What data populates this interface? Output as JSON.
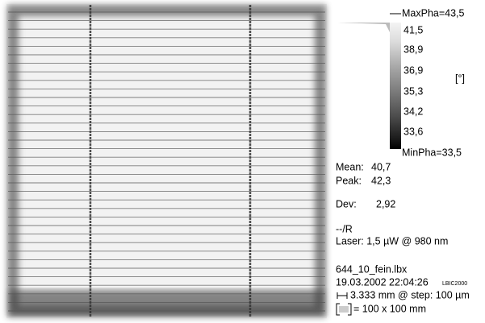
{
  "colorbar": {
    "max_label": "MaxPha=43,5",
    "ticks": [
      "41,5",
      "38,9",
      "36,9",
      "35,3",
      "34,2",
      "33,6"
    ],
    "min_label": "MinPha=33,5",
    "unit": "[°]"
  },
  "stats": {
    "mean_label": "Mean:",
    "mean": "40,7",
    "peak_label": "Peak:",
    "peak": "42,3",
    "dev_label": "Dev:",
    "dev": "2,92"
  },
  "info": {
    "mode": "--/R",
    "laser": "Laser: 1,5 µW @ 980 nm",
    "file": "644_10_fein.lbx",
    "timestamp": "19.03.2002 22:04:26",
    "instrument": "LBIC2000",
    "step": "3.333 mm @ step: 100 µm",
    "size": "= 100 x 100 mm"
  }
}
